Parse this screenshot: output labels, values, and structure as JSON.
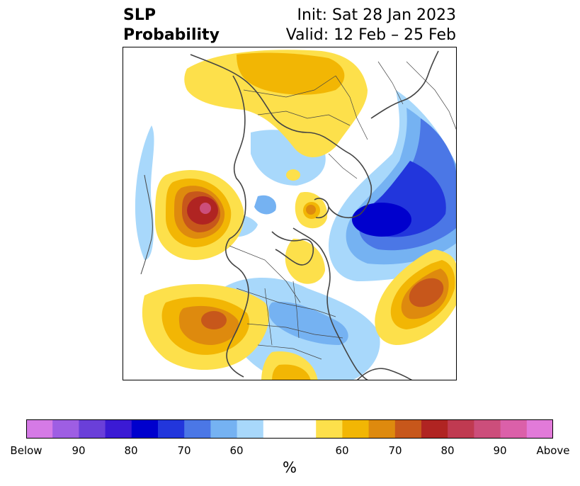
{
  "title": {
    "left_line1": "SLP",
    "left_line2": "Probability",
    "right_line1": "Init: Sat 28 Jan 2023",
    "right_line2": "Valid: 12 Feb – 25 Feb"
  },
  "map": {
    "projection": "north-polar-stereographic",
    "background": "#ffffff",
    "coastline_color": "#444444"
  },
  "colorbar": {
    "unit": "%",
    "tick_labels": [
      "Below",
      "90",
      "80",
      "70",
      "60",
      "60",
      "70",
      "80",
      "90",
      "Above"
    ],
    "colors": [
      "#d57ae6",
      "#9e5ee3",
      "#6a3fd9",
      "#3b1ad4",
      "#0000cd",
      "#2236dc",
      "#4b77e6",
      "#75b2f2",
      "#a8d8fb",
      "#ffffff",
      "#fde04b",
      "#f2b604",
      "#de8a0e",
      "#c7571b",
      "#b02422",
      "#c03a51",
      "#cc4e7b",
      "#db60a9",
      "#e27ad9"
    ]
  }
}
